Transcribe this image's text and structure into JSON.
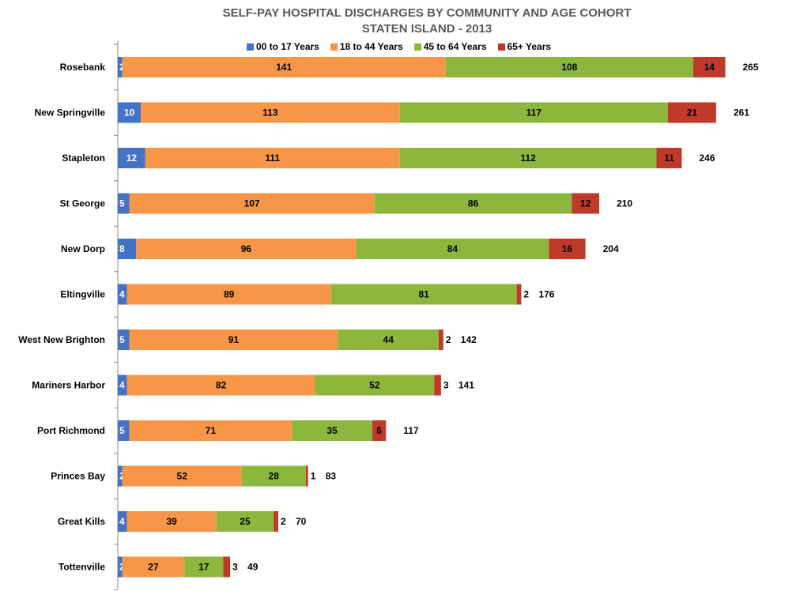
{
  "chart_data": {
    "type": "bar",
    "orientation": "horizontal",
    "stacked": true,
    "title": "SELF-PAY HOSPITAL DISCHARGES BY COMMUNITY AND AGE COHORT",
    "subtitle": "STATEN ISLAND - 2013",
    "legend_position": "top",
    "grid": false,
    "categories": [
      "Rosebank",
      "New Springville",
      "Stapleton",
      "St George",
      "New Dorp",
      "Eltingville",
      "West New Brighton",
      "Mariners Harbor",
      "Port Richmond",
      "Princes Bay",
      "Great Kills",
      "Tottenville"
    ],
    "series": [
      {
        "name": "00 to 17 Years",
        "color": "#4472C4",
        "values": [
          2,
          10,
          12,
          5,
          8,
          4,
          5,
          4,
          5,
          2,
          4,
          2
        ]
      },
      {
        "name": "18 to 44 Years",
        "color": "#F79646",
        "values": [
          141,
          113,
          111,
          107,
          96,
          89,
          91,
          82,
          71,
          52,
          39,
          27
        ]
      },
      {
        "name": "45 to 64 Years",
        "color": "#8DB73C",
        "values": [
          108,
          117,
          112,
          86,
          84,
          81,
          44,
          52,
          35,
          28,
          25,
          17
        ]
      },
      {
        "name": "65+ Years",
        "color": "#C0392B",
        "values": [
          14,
          21,
          11,
          12,
          16,
          2,
          2,
          3,
          6,
          1,
          2,
          3
        ]
      }
    ],
    "totals": [
      265,
      261,
      246,
      210,
      204,
      176,
      142,
      141,
      117,
      83,
      70,
      49
    ]
  }
}
